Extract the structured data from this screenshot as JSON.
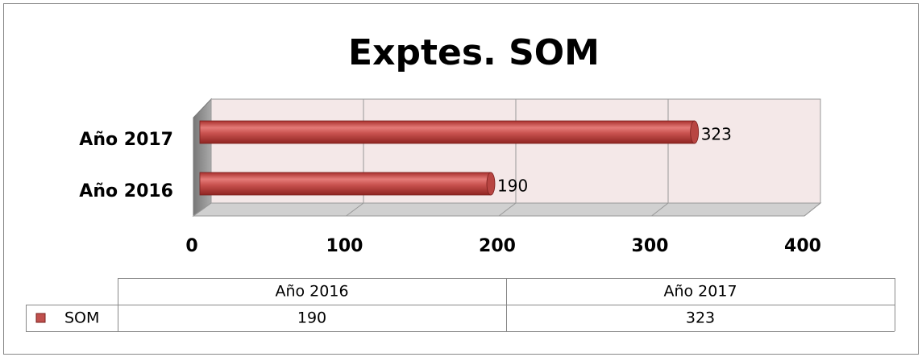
{
  "chart_data": {
    "type": "bar",
    "orientation": "horizontal",
    "title": "Exptes. SOM",
    "categories": [
      "Año 2016",
      "Año 2017"
    ],
    "series": [
      {
        "name": "SOM",
        "color": "#c0504d",
        "values": [
          190,
          323
        ]
      }
    ],
    "xlim": [
      0,
      400
    ],
    "xticks": [
      0,
      100,
      200,
      300,
      400
    ],
    "grid": true,
    "data_table": true
  }
}
